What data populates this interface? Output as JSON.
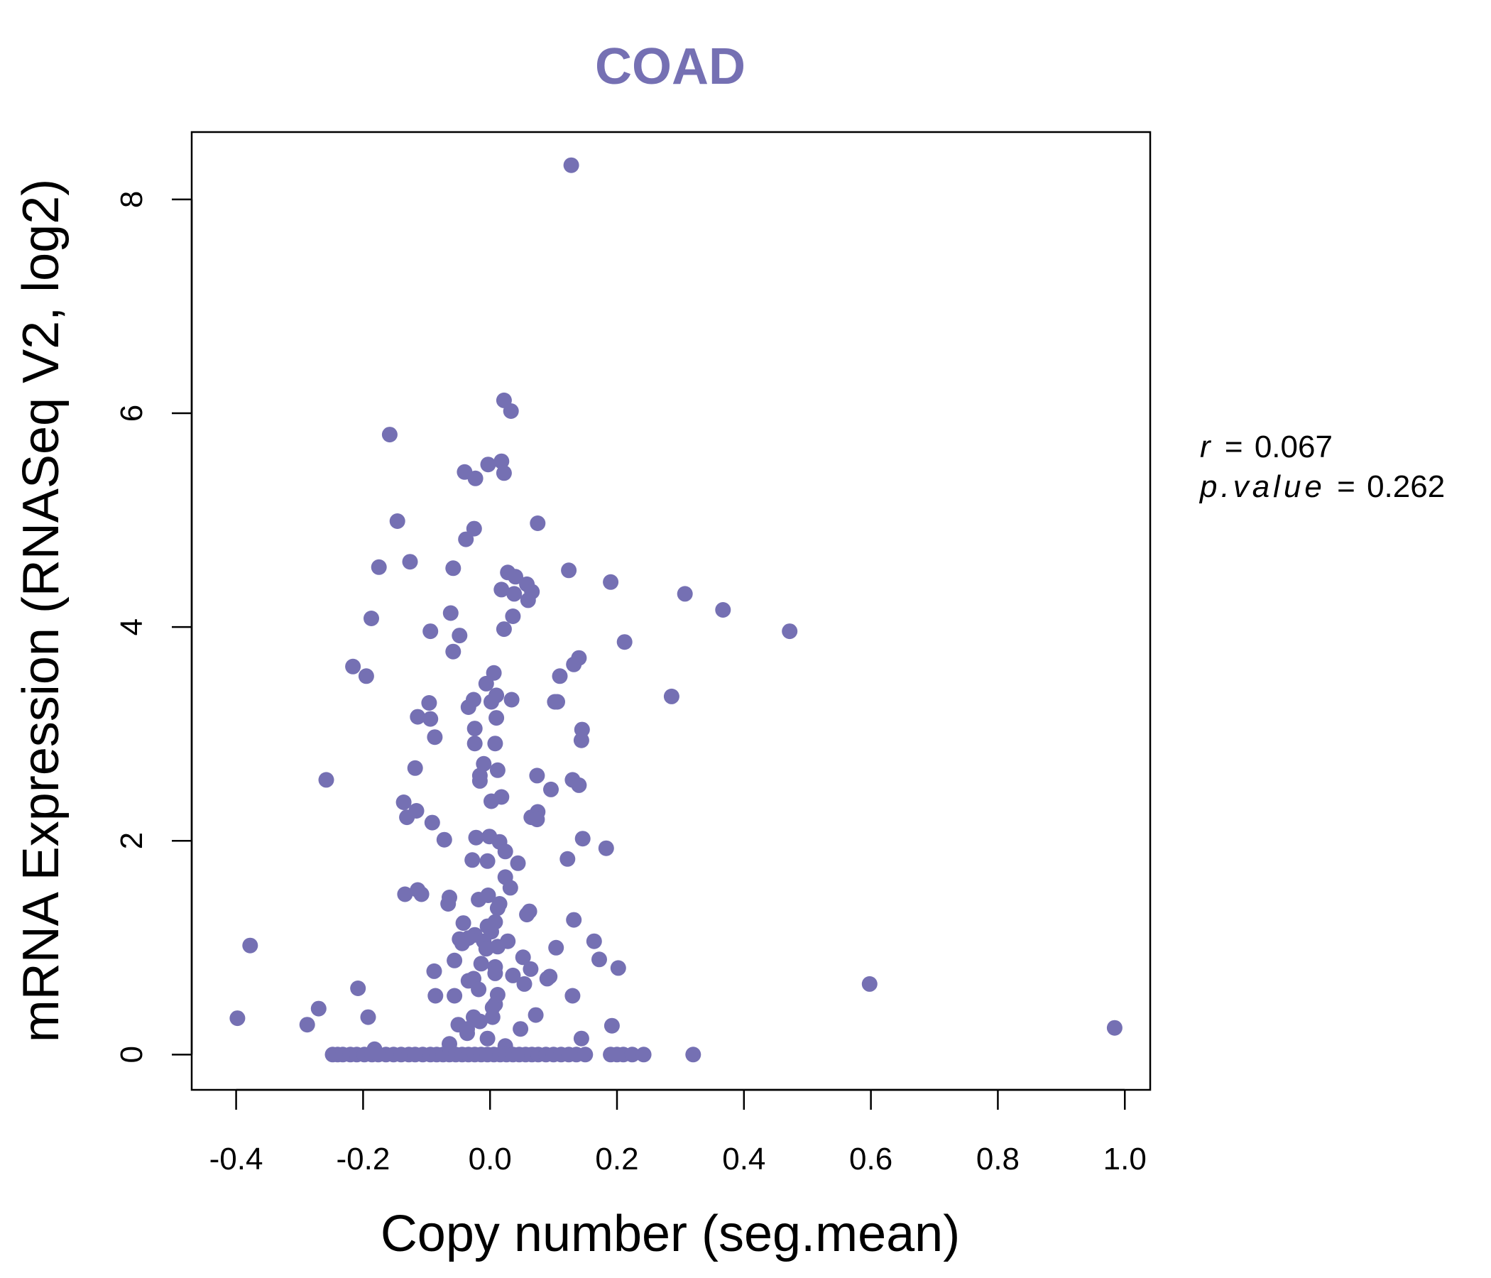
{
  "chart_data": {
    "type": "scatter",
    "title": "COAD",
    "xlabel": "Copy number (seg.mean)",
    "ylabel": "mRNA Expression (RNASeq V2, log2)",
    "xlim": [
      -0.47,
      1.04
    ],
    "ylim": [
      -0.33,
      8.63
    ],
    "xticks": [
      -0.4,
      -0.2,
      0.0,
      0.2,
      0.4,
      0.6,
      0.8,
      1.0
    ],
    "xtick_labels": [
      "-0.4",
      "-0.2",
      "0.0",
      "0.2",
      "0.4",
      "0.6",
      "0.8",
      "1.0"
    ],
    "yticks": [
      0,
      2,
      4,
      6,
      8
    ],
    "ytick_labels": [
      "0",
      "2",
      "4",
      "6",
      "8"
    ],
    "grid": false,
    "point_color": "#7570b3",
    "stats": {
      "r_symbol": "r",
      "r_value": "0.067",
      "p_symbol": "p.value",
      "p_value": "0.262",
      "equals": "="
    },
    "points": [
      [
        0.128,
        8.32
      ],
      [
        0.022,
        6.12
      ],
      [
        0.033,
        6.02
      ],
      [
        -0.158,
        5.8
      ],
      [
        -0.003,
        5.52
      ],
      [
        0.018,
        5.55
      ],
      [
        -0.04,
        5.45
      ],
      [
        -0.023,
        5.39
      ],
      [
        0.022,
        5.44
      ],
      [
        -0.146,
        4.99
      ],
      [
        0.075,
        4.97
      ],
      [
        -0.025,
        4.92
      ],
      [
        -0.038,
        4.82
      ],
      [
        -0.126,
        4.61
      ],
      [
        -0.175,
        4.56
      ],
      [
        -0.058,
        4.55
      ],
      [
        0.124,
        4.53
      ],
      [
        0.028,
        4.51
      ],
      [
        0.04,
        4.47
      ],
      [
        0.19,
        4.42
      ],
      [
        0.058,
        4.4
      ],
      [
        0.018,
        4.35
      ],
      [
        0.066,
        4.33
      ],
      [
        0.038,
        4.31
      ],
      [
        0.06,
        4.25
      ],
      [
        0.307,
        4.31
      ],
      [
        0.367,
        4.16
      ],
      [
        -0.062,
        4.13
      ],
      [
        0.036,
        4.1
      ],
      [
        -0.187,
        4.08
      ],
      [
        0.022,
        3.98
      ],
      [
        -0.094,
        3.96
      ],
      [
        -0.048,
        3.92
      ],
      [
        0.472,
        3.96
      ],
      [
        0.212,
        3.86
      ],
      [
        -0.058,
        3.77
      ],
      [
        0.14,
        3.71
      ],
      [
        0.132,
        3.65
      ],
      [
        -0.216,
        3.63
      ],
      [
        -0.195,
        3.54
      ],
      [
        0.11,
        3.54
      ],
      [
        0.006,
        3.57
      ],
      [
        -0.006,
        3.47
      ],
      [
        0.286,
        3.35
      ],
      [
        0.01,
        3.36
      ],
      [
        0.034,
        3.32
      ],
      [
        0.002,
        3.3
      ],
      [
        -0.026,
        3.32
      ],
      [
        0.102,
        3.3
      ],
      [
        0.106,
        3.3
      ],
      [
        -0.096,
        3.29
      ],
      [
        -0.034,
        3.25
      ],
      [
        -0.114,
        3.16
      ],
      [
        -0.094,
        3.14
      ],
      [
        0.01,
        3.15
      ],
      [
        0.145,
        3.04
      ],
      [
        -0.024,
        3.05
      ],
      [
        -0.087,
        2.97
      ],
      [
        0.144,
        2.94
      ],
      [
        -0.024,
        2.91
      ],
      [
        0.008,
        2.91
      ],
      [
        -0.01,
        2.72
      ],
      [
        -0.118,
        2.68
      ],
      [
        0.012,
        2.66
      ],
      [
        0.074,
        2.61
      ],
      [
        -0.016,
        2.61
      ],
      [
        -0.258,
        2.57
      ],
      [
        0.13,
        2.57
      ],
      [
        0.14,
        2.52
      ],
      [
        -0.016,
        2.56
      ],
      [
        0.096,
        2.48
      ],
      [
        0.018,
        2.41
      ],
      [
        0.002,
        2.37
      ],
      [
        -0.136,
        2.36
      ],
      [
        -0.116,
        2.28
      ],
      [
        0.075,
        2.27
      ],
      [
        -0.131,
        2.22
      ],
      [
        0.065,
        2.22
      ],
      [
        0.074,
        2.2
      ],
      [
        -0.091,
        2.17
      ],
      [
        -0.072,
        2.01
      ],
      [
        -0.022,
        2.03
      ],
      [
        -0.001,
        2.04
      ],
      [
        0.146,
        2.02
      ],
      [
        0.015,
        1.99
      ],
      [
        0.183,
        1.93
      ],
      [
        0.024,
        1.9
      ],
      [
        0.122,
        1.83
      ],
      [
        -0.028,
        1.82
      ],
      [
        -0.004,
        1.81
      ],
      [
        0.044,
        1.79
      ],
      [
        0.024,
        1.66
      ],
      [
        0.032,
        1.56
      ],
      [
        -0.114,
        1.54
      ],
      [
        -0.108,
        1.5
      ],
      [
        -0.134,
        1.5
      ],
      [
        -0.003,
        1.49
      ],
      [
        -0.064,
        1.47
      ],
      [
        -0.018,
        1.45
      ],
      [
        0.015,
        1.41
      ],
      [
        -0.066,
        1.41
      ],
      [
        0.012,
        1.37
      ],
      [
        0.062,
        1.34
      ],
      [
        0.058,
        1.31
      ],
      [
        0.132,
        1.26
      ],
      [
        -0.042,
        1.23
      ],
      [
        0.008,
        1.24
      ],
      [
        -0.004,
        1.2
      ],
      [
        0.002,
        1.15
      ],
      [
        -0.024,
        1.12
      ],
      [
        -0.034,
        1.09
      ],
      [
        -0.048,
        1.08
      ],
      [
        -0.01,
        1.06
      ],
      [
        0.028,
        1.06
      ],
      [
        0.164,
        1.06
      ],
      [
        -0.044,
        1.04
      ],
      [
        -0.378,
        1.02
      ],
      [
        0.012,
        1.01
      ],
      [
        -0.006,
        0.99
      ],
      [
        0.104,
        1.0
      ],
      [
        0.052,
        0.91
      ],
      [
        -0.056,
        0.88
      ],
      [
        0.172,
        0.89
      ],
      [
        -0.014,
        0.85
      ],
      [
        0.064,
        0.8
      ],
      [
        0.008,
        0.82
      ],
      [
        -0.088,
        0.78
      ],
      [
        0.202,
        0.81
      ],
      [
        0.008,
        0.76
      ],
      [
        0.036,
        0.74
      ],
      [
        0.094,
        0.73
      ],
      [
        0.09,
        0.71
      ],
      [
        -0.026,
        0.71
      ],
      [
        -0.034,
        0.69
      ],
      [
        0.054,
        0.66
      ],
      [
        0.598,
        0.66
      ],
      [
        -0.208,
        0.62
      ],
      [
        -0.018,
        0.61
      ],
      [
        0.012,
        0.56
      ],
      [
        0.13,
        0.55
      ],
      [
        -0.086,
        0.55
      ],
      [
        -0.056,
        0.55
      ],
      [
        0.008,
        0.47
      ],
      [
        0.004,
        0.44
      ],
      [
        -0.27,
        0.43
      ],
      [
        -0.398,
        0.34
      ],
      [
        -0.192,
        0.35
      ],
      [
        0.072,
        0.37
      ],
      [
        -0.026,
        0.35
      ],
      [
        0.004,
        0.35
      ],
      [
        -0.016,
        0.31
      ],
      [
        -0.05,
        0.28
      ],
      [
        -0.036,
        0.24
      ],
      [
        -0.288,
        0.28
      ],
      [
        0.192,
        0.27
      ],
      [
        0.048,
        0.24
      ],
      [
        0.984,
        0.25
      ],
      [
        -0.036,
        0.2
      ],
      [
        -0.004,
        0.15
      ],
      [
        0.144,
        0.15
      ],
      [
        -0.064,
        0.1
      ],
      [
        0.024,
        0.08
      ],
      [
        -0.182,
        0.05
      ],
      [
        -0.248,
        0.0
      ],
      [
        -0.24,
        0.0
      ],
      [
        -0.232,
        0.0
      ],
      [
        -0.22,
        0.0
      ],
      [
        -0.21,
        0.0
      ],
      [
        -0.198,
        0.0
      ],
      [
        -0.186,
        0.0
      ],
      [
        -0.176,
        0.0
      ],
      [
        -0.164,
        0.0
      ],
      [
        -0.152,
        0.0
      ],
      [
        -0.14,
        0.0
      ],
      [
        -0.128,
        0.0
      ],
      [
        -0.118,
        0.0
      ],
      [
        -0.106,
        0.0
      ],
      [
        -0.094,
        0.0
      ],
      [
        -0.084,
        0.0
      ],
      [
        -0.074,
        0.0
      ],
      [
        -0.064,
        0.0
      ],
      [
        -0.054,
        0.0
      ],
      [
        -0.044,
        0.0
      ],
      [
        -0.034,
        0.0
      ],
      [
        -0.024,
        0.0
      ],
      [
        -0.014,
        0.0
      ],
      [
        -0.004,
        0.0
      ],
      [
        0.006,
        0.0
      ],
      [
        0.016,
        0.0
      ],
      [
        0.026,
        0.0
      ],
      [
        0.036,
        0.0
      ],
      [
        0.046,
        0.0
      ],
      [
        0.056,
        0.0
      ],
      [
        0.066,
        0.0
      ],
      [
        0.076,
        0.0
      ],
      [
        0.088,
        0.0
      ],
      [
        0.1,
        0.0
      ],
      [
        0.112,
        0.0
      ],
      [
        0.124,
        0.0
      ],
      [
        0.136,
        0.0
      ],
      [
        0.15,
        0.0
      ],
      [
        0.19,
        0.0
      ],
      [
        0.2,
        0.0
      ],
      [
        0.21,
        0.0
      ],
      [
        0.224,
        0.0
      ],
      [
        0.242,
        0.0
      ],
      [
        0.32,
        0.0
      ]
    ]
  }
}
